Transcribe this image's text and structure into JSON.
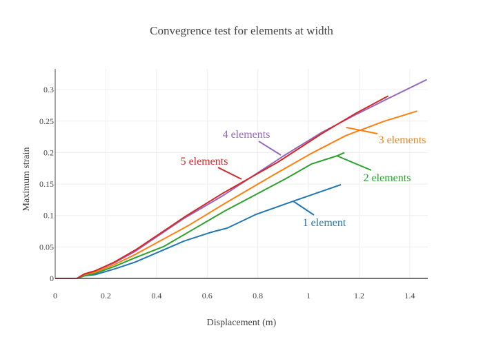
{
  "chart_data": {
    "type": "line",
    "title": "Convegrence test for elements at width",
    "xlabel": "Displacement (m)",
    "ylabel": "Maximum strain",
    "xlim": [
      0,
      1.471
    ],
    "ylim": [
      0,
      0.333
    ],
    "grid": true,
    "x_ticks": [
      0,
      0.2,
      0.4,
      0.6,
      0.8,
      1,
      1.2,
      1.4
    ],
    "x_tick_labels": [
      "0",
      "0.2",
      "0.4",
      "0.6",
      "0.8",
      "1",
      "1.2",
      "1.4"
    ],
    "y_ticks": [
      0,
      0.05,
      0.1,
      0.15,
      0.2,
      0.25,
      0.3
    ],
    "y_tick_labels": [
      "0",
      "0.05",
      "0.1",
      "0.15",
      "0.2",
      "0.25",
      "0.3"
    ],
    "series": [
      {
        "name": "1 element",
        "color": "#1f77b4",
        "x": [
          0,
          0.086,
          0.115,
          0.158,
          0.234,
          0.316,
          0.507,
          0.612,
          0.679,
          0.794,
          0.942,
          1.042,
          1.128
        ],
        "y": [
          0,
          0,
          0.004,
          0.006,
          0.015,
          0.026,
          0.059,
          0.073,
          0.08,
          0.102,
          0.123,
          0.137,
          0.149
        ]
      },
      {
        "name": "2 elements",
        "color": "#2ca02c",
        "x": [
          0,
          0.086,
          0.115,
          0.158,
          0.234,
          0.316,
          0.43,
          0.669,
          0.908,
          1.013,
          1.114,
          1.142
        ],
        "y": [
          0,
          0,
          0.004,
          0.008,
          0.019,
          0.033,
          0.051,
          0.107,
          0.158,
          0.182,
          0.195,
          0.2
        ]
      },
      {
        "name": "3 elements",
        "color": "#ff7f0e",
        "x": [
          0,
          0.086,
          0.115,
          0.158,
          0.234,
          0.316,
          0.526,
          0.669,
          0.86,
          1.013,
          1.147,
          1.3,
          1.429
        ],
        "y": [
          0,
          0,
          0.006,
          0.01,
          0.022,
          0.038,
          0.084,
          0.119,
          0.164,
          0.199,
          0.227,
          0.25,
          0.266
        ]
      },
      {
        "name": "4 elements",
        "color": "#9467bd",
        "x": [
          0,
          0.086,
          0.115,
          0.158,
          0.234,
          0.316,
          0.507,
          0.66,
          0.899,
          1.052,
          1.185,
          1.3,
          1.467
        ],
        "y": [
          0,
          0,
          0.007,
          0.012,
          0.025,
          0.043,
          0.095,
          0.131,
          0.194,
          0.232,
          0.26,
          0.283,
          0.316
        ]
      },
      {
        "name": "5 elements",
        "color": "#d62728",
        "x": [
          0,
          0.086,
          0.115,
          0.158,
          0.234,
          0.316,
          0.516,
          0.66,
          0.88,
          1.052,
          1.185,
          1.315
        ],
        "y": [
          0,
          0,
          0.007,
          0.012,
          0.026,
          0.045,
          0.099,
          0.135,
          0.185,
          0.23,
          0.262,
          0.29
        ]
      }
    ],
    "annotations": [
      {
        "text": "1 element",
        "series": 0
      },
      {
        "text": "2 elements",
        "series": 1
      },
      {
        "text": "3 elements",
        "series": 2
      },
      {
        "text": "4 elements",
        "series": 3
      },
      {
        "text": "5 elements",
        "series": 4
      }
    ]
  }
}
